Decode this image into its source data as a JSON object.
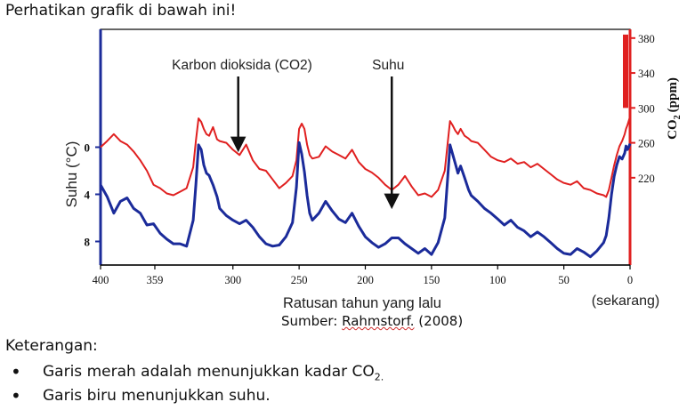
{
  "intro": "Perhatikan grafik di bawah ini!",
  "source": {
    "prefix": "Sumber: ",
    "author": "Rahmstorf.",
    "year": " (2008)"
  },
  "keterangan": {
    "title": "Keterangan:",
    "items": [
      {
        "text": "Garis merah adalah menunjukkan kadar CO",
        "sub": "2."
      },
      {
        "text": "Garis biru menunjukkan suhu.",
        "sub": ""
      }
    ]
  },
  "chart_data": {
    "type": "line",
    "xlabel": "Ratusan tahun yang lalu",
    "x_end_label": "(sekarang)",
    "xlim": [
      400,
      0
    ],
    "x_ticks": [
      400,
      359,
      300,
      250,
      200,
      150,
      100,
      50,
      0
    ],
    "y_left_label": "Suhu  (°C)",
    "y_left_ticks": [
      "0",
      "4",
      "8"
    ],
    "y_left_range": [
      -10,
      10
    ],
    "y_right_label": "CO",
    "y_right_label_sub": "2",
    "y_right_label_unit": "(ppm)",
    "y_right_ticks": [
      380,
      340,
      300,
      260,
      220
    ],
    "y_right_range": [
      120,
      390
    ],
    "annotations": [
      {
        "text": "Karbon dioksida (CO2)",
        "x": 296,
        "target_y_ppm": 250
      },
      {
        "text": "Suhu",
        "x": 180,
        "target_y_temp": -5.2
      }
    ],
    "series": [
      {
        "axis": "right",
        "color": "#e02020",
        "x": [
          400,
          395,
          390,
          385,
          380,
          375,
          370,
          365,
          360,
          355,
          350,
          345,
          340,
          335,
          330,
          328,
          326,
          324,
          322,
          320,
          318,
          315,
          312,
          310,
          305,
          300,
          295,
          290,
          285,
          280,
          275,
          270,
          265,
          260,
          255,
          252,
          250,
          248,
          246,
          244,
          242,
          240,
          235,
          230,
          225,
          220,
          215,
          210,
          205,
          200,
          195,
          190,
          185,
          180,
          175,
          170,
          165,
          160,
          155,
          150,
          145,
          140,
          138,
          136,
          134,
          132,
          130,
          128,
          125,
          122,
          120,
          115,
          110,
          105,
          100,
          95,
          90,
          85,
          80,
          75,
          70,
          65,
          60,
          55,
          50,
          45,
          40,
          35,
          30,
          25,
          20,
          18,
          16,
          14,
          12,
          10,
          8,
          6,
          4,
          3,
          2,
          1,
          0
        ],
        "values": [
          255,
          262,
          270,
          262,
          258,
          250,
          240,
          228,
          212,
          208,
          202,
          200,
          204,
          208,
          232,
          262,
          288,
          284,
          276,
          270,
          268,
          278,
          264,
          262,
          260,
          252,
          246,
          258,
          240,
          230,
          228,
          218,
          208,
          214,
          222,
          240,
          276,
          282,
          276,
          258,
          246,
          242,
          244,
          256,
          250,
          246,
          242,
          252,
          238,
          230,
          226,
          220,
          212,
          206,
          212,
          222,
          210,
          200,
          202,
          198,
          206,
          228,
          256,
          285,
          280,
          274,
          270,
          276,
          268,
          265,
          262,
          260,
          252,
          244,
          240,
          238,
          242,
          236,
          238,
          232,
          236,
          230,
          224,
          218,
          214,
          212,
          216,
          208,
          206,
          202,
          200,
          198,
          206,
          220,
          234,
          246,
          256,
          262,
          270,
          276,
          280,
          285,
          290
        ]
      },
      {
        "axis": "left",
        "color": "#1b2b9a",
        "x": [
          400,
          395,
          390,
          385,
          380,
          375,
          370,
          365,
          360,
          355,
          350,
          345,
          340,
          335,
          330,
          328,
          326,
          324,
          322,
          320,
          318,
          315,
          312,
          310,
          305,
          300,
          295,
          290,
          285,
          280,
          275,
          270,
          265,
          260,
          255,
          252,
          250,
          248,
          246,
          244,
          242,
          240,
          235,
          230,
          225,
          220,
          215,
          210,
          205,
          200,
          195,
          190,
          185,
          180,
          175,
          170,
          165,
          160,
          155,
          150,
          145,
          140,
          138,
          136,
          134,
          132,
          130,
          128,
          125,
          122,
          120,
          115,
          110,
          105,
          100,
          95,
          90,
          85,
          80,
          75,
          70,
          65,
          60,
          55,
          50,
          45,
          40,
          35,
          30,
          25,
          20,
          18,
          16,
          14,
          12,
          10,
          8,
          6,
          4,
          3,
          2,
          1,
          0
        ],
        "values": [
          -3.2,
          -4.2,
          -5.6,
          -4.6,
          -4.3,
          -5.2,
          -5.6,
          -6.6,
          -6.5,
          -7.3,
          -7.8,
          -8.2,
          -8.2,
          -8.4,
          -6.2,
          -3.2,
          0.2,
          -0.2,
          -1.5,
          -2.2,
          -2.4,
          -3.2,
          -4.2,
          -5.2,
          -5.8,
          -6.2,
          -6.5,
          -6.2,
          -6.8,
          -7.6,
          -8.2,
          -8.4,
          -8.3,
          -7.6,
          -6.4,
          -3.4,
          0.4,
          -0.6,
          -2.1,
          -4.1,
          -5.6,
          -6.2,
          -5.6,
          -4.6,
          -5.4,
          -6.1,
          -6.4,
          -5.6,
          -6.7,
          -7.6,
          -8.1,
          -8.5,
          -8.2,
          -7.7,
          -7.7,
          -8.2,
          -8.6,
          -9.0,
          -8.6,
          -9.1,
          -8.1,
          -6.0,
          -3.0,
          0.2,
          -0.6,
          -1.4,
          -2.2,
          -1.6,
          -2.6,
          -3.6,
          -4.1,
          -4.6,
          -5.2,
          -5.6,
          -6.1,
          -6.6,
          -6.2,
          -6.8,
          -7.1,
          -7.6,
          -7.2,
          -7.6,
          -8.1,
          -8.6,
          -9.0,
          -9.1,
          -8.6,
          -8.9,
          -9.3,
          -8.8,
          -8.1,
          -7.5,
          -6.0,
          -4.0,
          -2.5,
          -1.5,
          -0.8,
          -1.0,
          -0.5,
          0.1,
          -0.2,
          0.0,
          0.3
        ]
      }
    ]
  }
}
